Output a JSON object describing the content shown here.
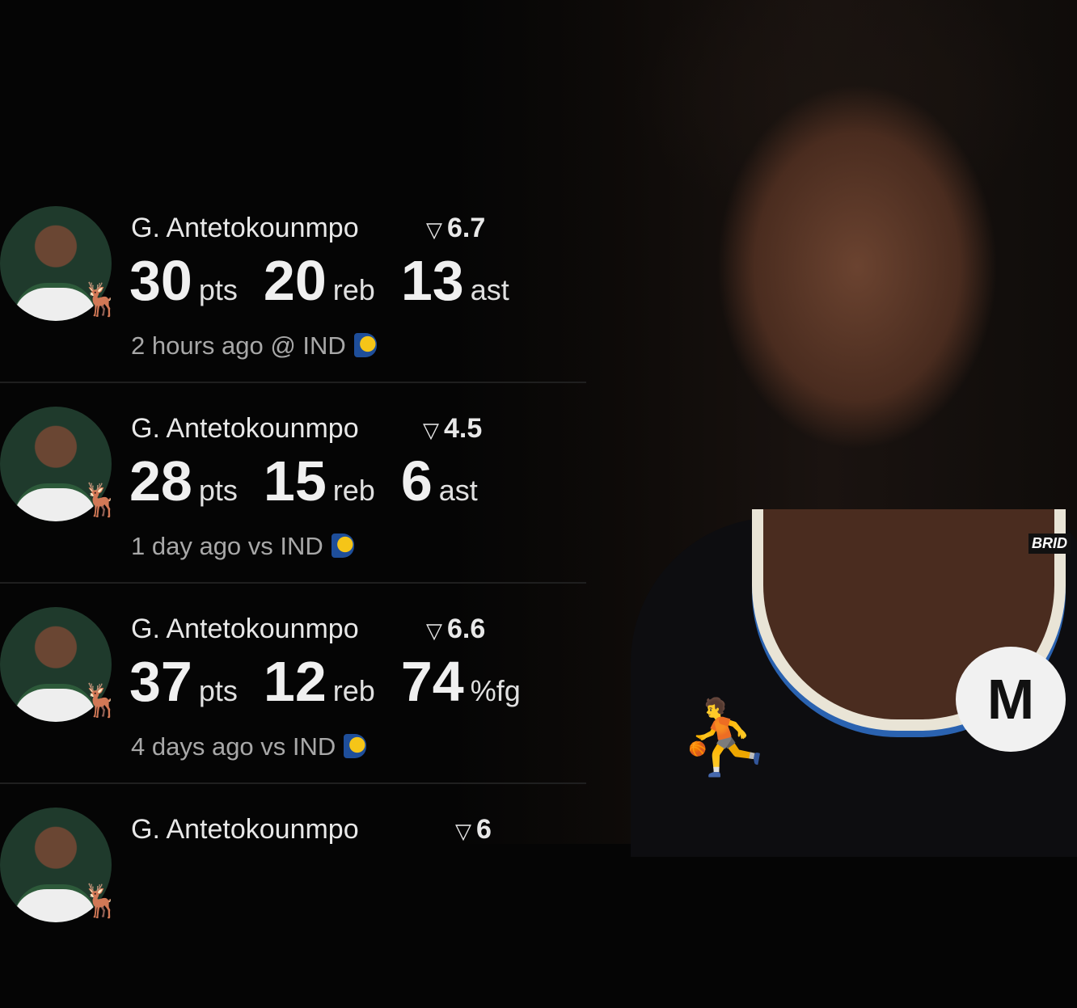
{
  "cards": [
    {
      "name": "G. Antetokounmpo",
      "rating": "6.7",
      "stats": [
        {
          "value": "30",
          "unit": "pts"
        },
        {
          "value": "20",
          "unit": "reb"
        },
        {
          "value": "13",
          "unit": "ast"
        }
      ],
      "subtitle": "2 hours ago @ IND"
    },
    {
      "name": "G. Antetokounmpo",
      "rating": "4.5",
      "stats": [
        {
          "value": "28",
          "unit": "pts"
        },
        {
          "value": "15",
          "unit": "reb"
        },
        {
          "value": "6",
          "unit": "ast"
        }
      ],
      "subtitle": "1 day ago vs IND"
    },
    {
      "name": "G. Antetokounmpo",
      "rating": "6.6",
      "stats": [
        {
          "value": "37",
          "unit": "pts"
        },
        {
          "value": "12",
          "unit": "reb"
        },
        {
          "value": "74",
          "unit": "%fg"
        }
      ],
      "subtitle": "4 days ago vs IND"
    },
    {
      "name": "G. Antetokounmpo",
      "rating": "6"
    }
  ],
  "photo": {
    "jersey_text": "BRID",
    "colors": {
      "jersey": "#0d0d10",
      "trim_blue": "#2a62b0",
      "trim_cream": "#e9e4d6",
      "bucks_green": "#2d5a3a",
      "pacers_navy": "#1e4e9a",
      "pacers_gold": "#f5c518"
    }
  }
}
